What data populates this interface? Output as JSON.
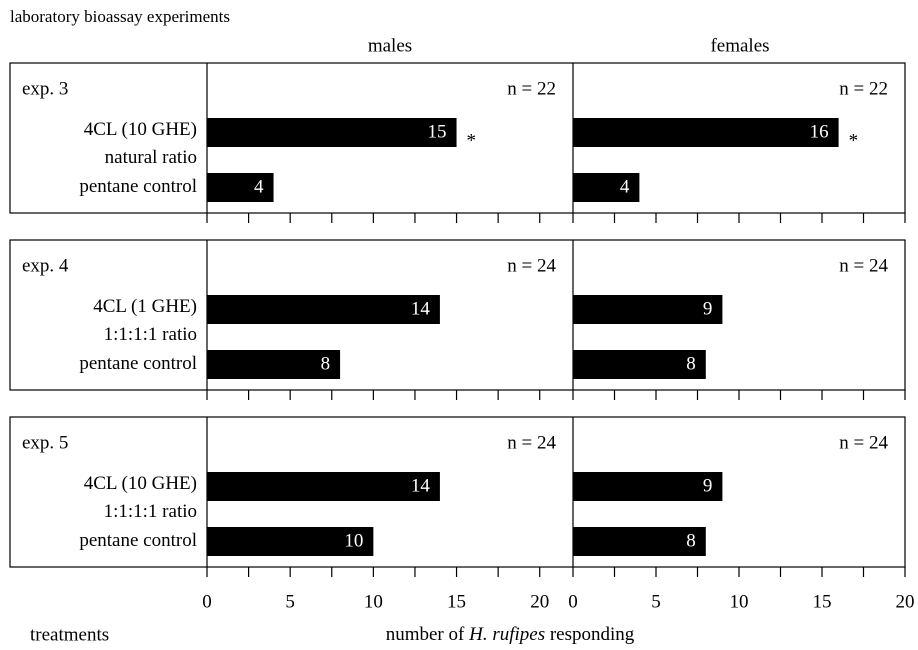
{
  "title": "laboratory bioassay experiments",
  "column_titles": [
    "males",
    "females"
  ],
  "y_label": "treatments",
  "x_label": [
    "number of ",
    "H. rufipes",
    " responding"
  ],
  "chart_data": [
    {
      "type": "bar",
      "orientation": "horizontal",
      "label": "exp. 3",
      "annotation": "n = 22",
      "categories": [
        "4CL (10 GHE)\nnatural ratio",
        "pentane control"
      ],
      "values": [
        15,
        4
      ],
      "value_annotations": [
        "*",
        null
      ],
      "color": "#000000",
      "xlim": [
        0,
        22
      ],
      "xticks": [
        0,
        5,
        10,
        15,
        20
      ],
      "xticks_minor": [
        2.5,
        7.5,
        12.5,
        17.5
      ]
    },
    {
      "type": "bar",
      "orientation": "horizontal",
      "annotation": "n = 22",
      "categories": [
        null,
        null
      ],
      "values": [
        16,
        4
      ],
      "value_annotations": [
        "*",
        null
      ],
      "color": "#000000",
      "xlim": [
        0,
        20
      ],
      "xticks": [
        0,
        5,
        10,
        15,
        20
      ],
      "xticks_minor": [
        2.5,
        7.5,
        12.5,
        17.5
      ]
    },
    {
      "type": "bar",
      "orientation": "horizontal",
      "label": "exp. 4",
      "annotation": "n = 24",
      "categories": [
        "4CL (1 GHE)\n1:1:1:1 ratio",
        "pentane control"
      ],
      "values": [
        14,
        8
      ],
      "value_annotations": [
        null,
        null
      ],
      "color": "#000000",
      "xlim": [
        0,
        22
      ],
      "xticks": [
        0,
        5,
        10,
        15,
        20
      ],
      "xticks_minor": [
        2.5,
        7.5,
        12.5,
        17.5
      ]
    },
    {
      "type": "bar",
      "orientation": "horizontal",
      "annotation": "n = 24",
      "categories": [
        null,
        null
      ],
      "values": [
        9,
        8
      ],
      "value_annotations": [
        null,
        null
      ],
      "color": "#000000",
      "xlim": [
        0,
        20
      ],
      "xticks": [
        0,
        5,
        10,
        15,
        20
      ],
      "xticks_minor": [
        2.5,
        7.5,
        12.5,
        17.5
      ]
    },
    {
      "type": "bar",
      "orientation": "horizontal",
      "label": "exp. 5",
      "annotation": "n = 24",
      "categories": [
        "4CL (10 GHE)\n1:1:1:1 ratio",
        "pentane control"
      ],
      "values": [
        14,
        10
      ],
      "value_annotations": [
        null,
        null
      ],
      "color": "#000000",
      "xlim": [
        0,
        22
      ],
      "xticks": [
        0,
        5,
        10,
        15,
        20
      ],
      "xticks_minor": [
        2.5,
        7.5,
        12.5,
        17.5
      ]
    },
    {
      "type": "bar",
      "orientation": "horizontal",
      "annotation": "n = 24",
      "categories": [
        null,
        null
      ],
      "values": [
        9,
        8
      ],
      "value_annotations": [
        null,
        null
      ],
      "color": "#000000",
      "xlim": [
        0,
        20
      ],
      "xticks": [
        0,
        5,
        10,
        15,
        20
      ],
      "xticks_minor": [
        2.5,
        7.5,
        12.5,
        17.5
      ]
    }
  ]
}
